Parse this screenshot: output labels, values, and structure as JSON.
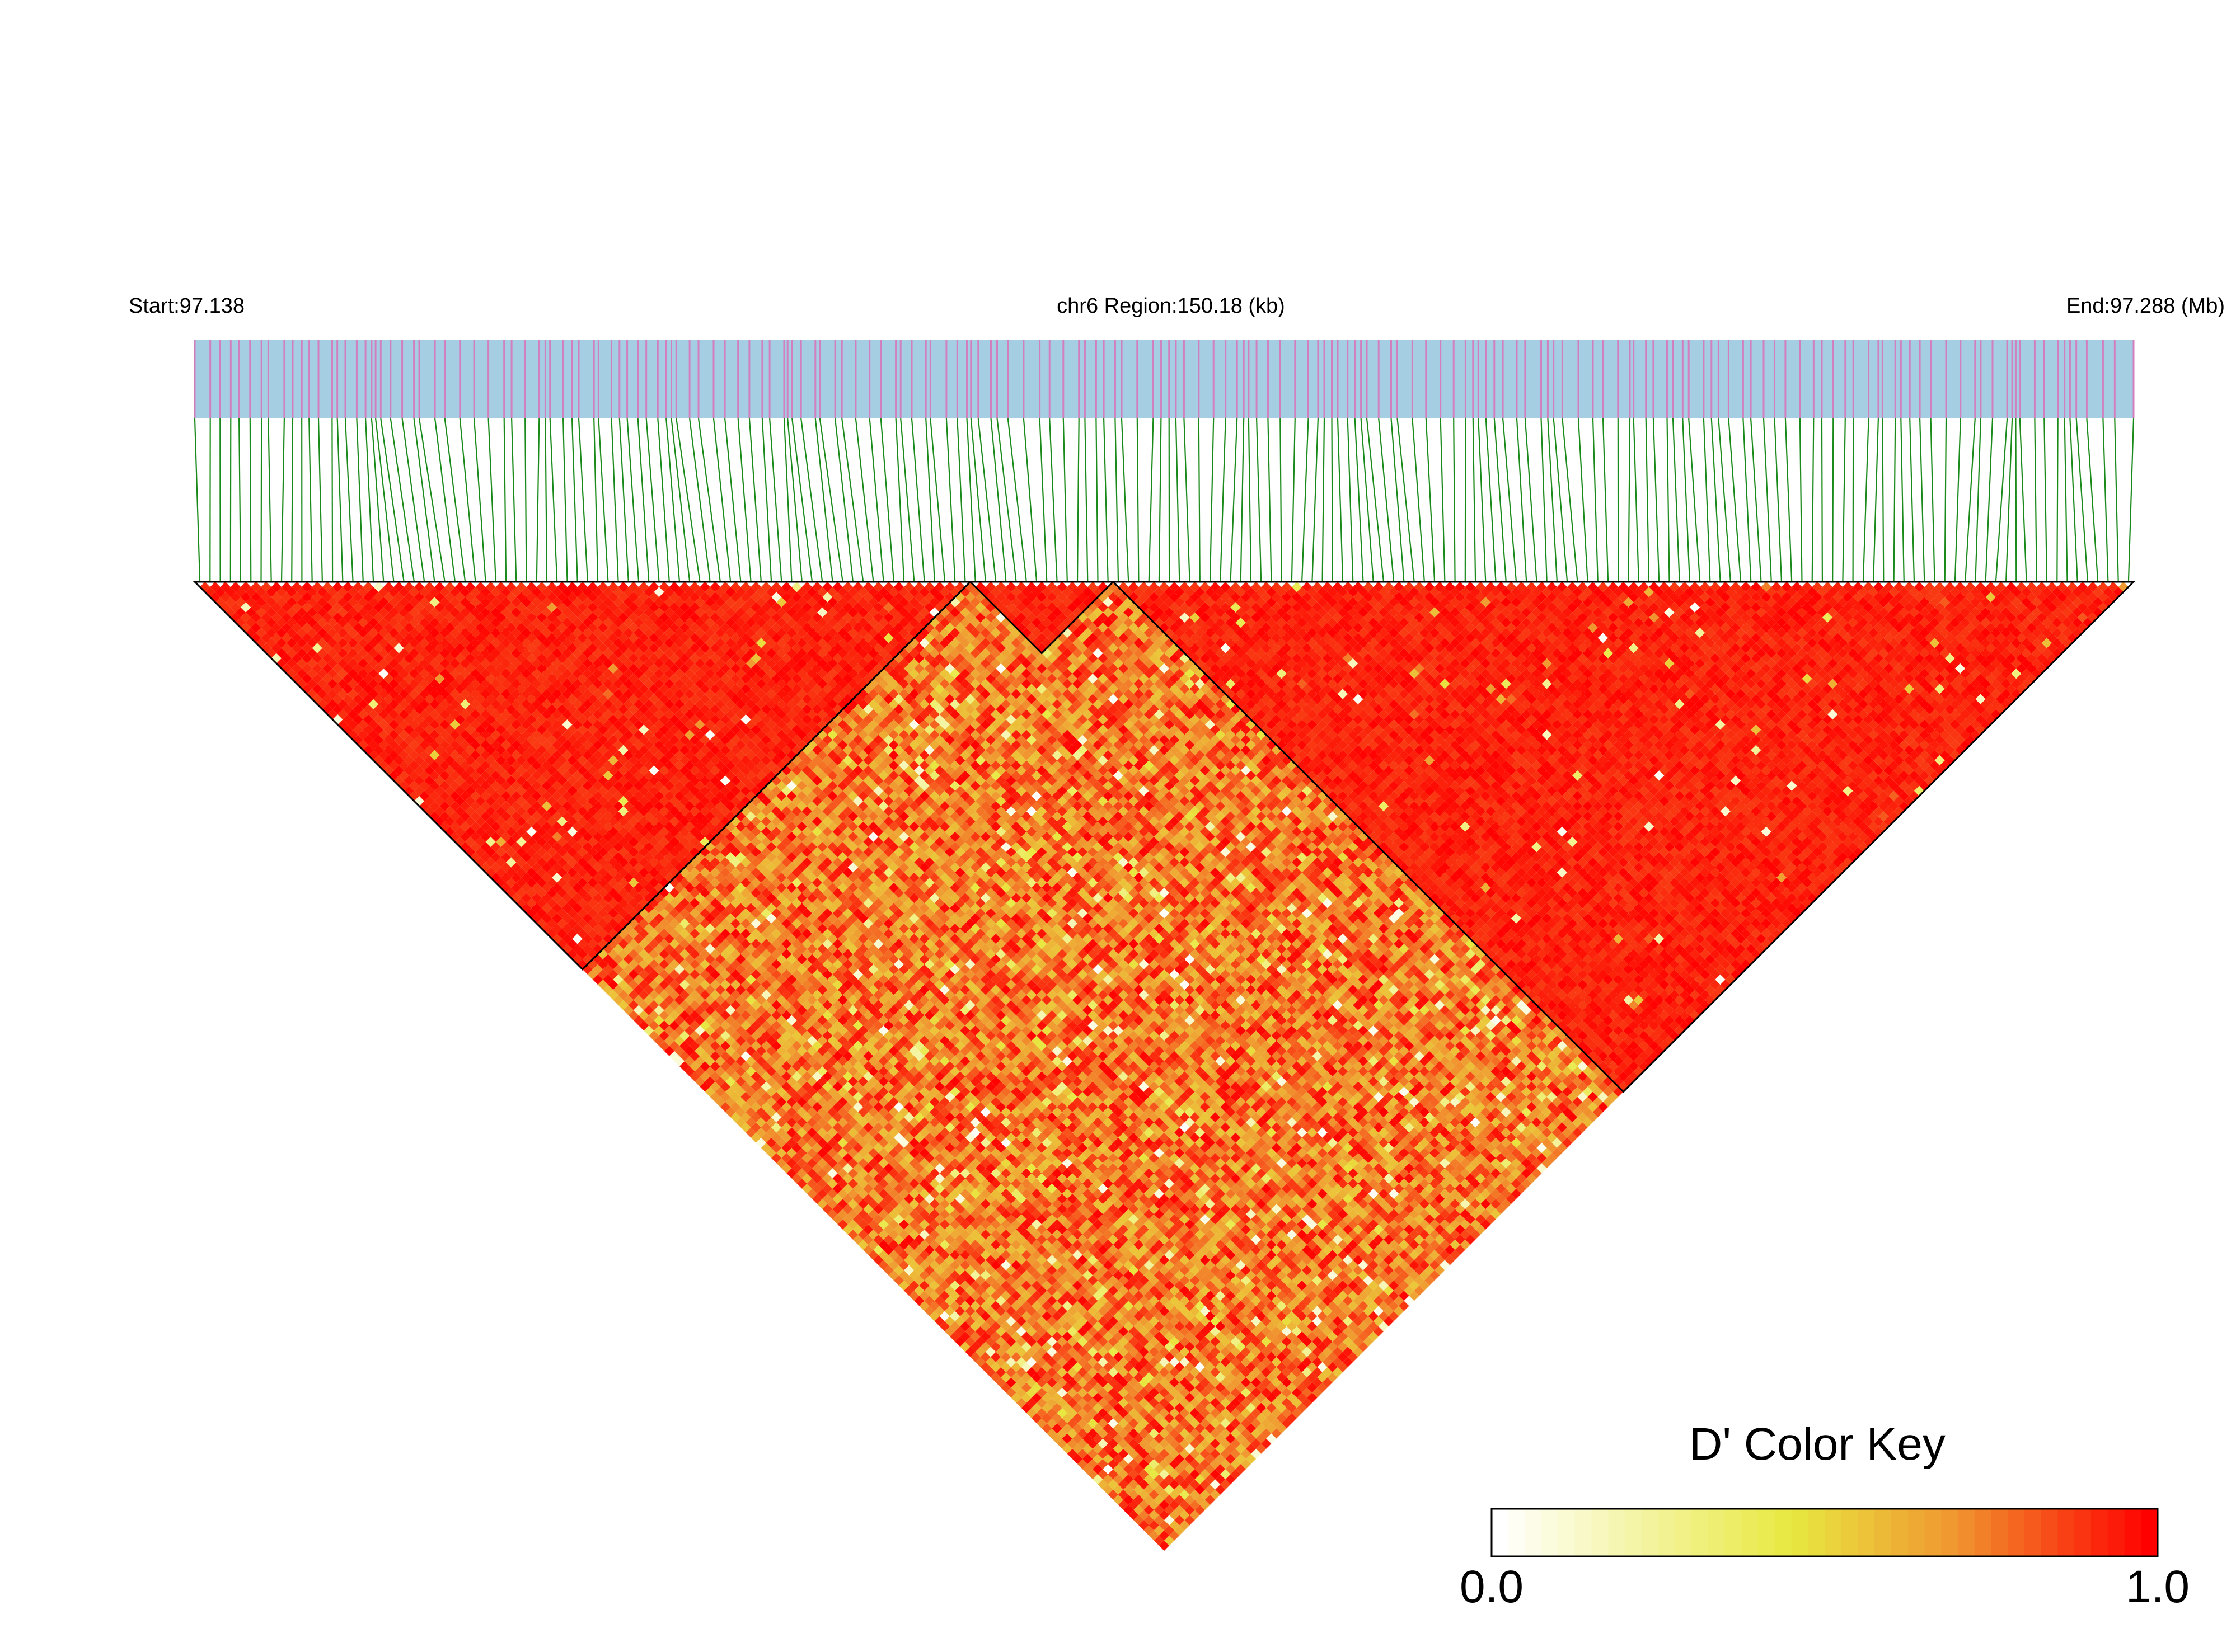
{
  "chart_data": {
    "type": "heatmap",
    "subtype": "linkage-disequilibrium triangle",
    "start_label": "Start:97.138",
    "region_label": "chr6 Region:150.18 (kb)",
    "end_label": "End:97.288 (Mb)",
    "chromosome": "chr6",
    "region_start_mb": 97.138,
    "region_end_mb": 97.288,
    "region_length_kb": 150.18,
    "snp_count": 190,
    "measure": "D'",
    "color_key": {
      "title": "D' Color Key",
      "min_label": "0.0",
      "max_label": "1.0",
      "range": [
        0.0,
        1.0
      ],
      "stops": [
        "#ffffff",
        "#e8e840",
        "#f0a030",
        "#ff0000"
      ]
    },
    "blocks": [
      {
        "snp_start": 0,
        "snp_end": 76
      },
      {
        "snp_start": 76,
        "snp_end": 90
      },
      {
        "snp_start": 90,
        "snp_end": 190
      }
    ],
    "colors": {
      "track_band": "#a6cee3",
      "snp_tick": "#d17fbf",
      "connector": "#1a8a1a",
      "high_ld": "#ff0000"
    }
  }
}
